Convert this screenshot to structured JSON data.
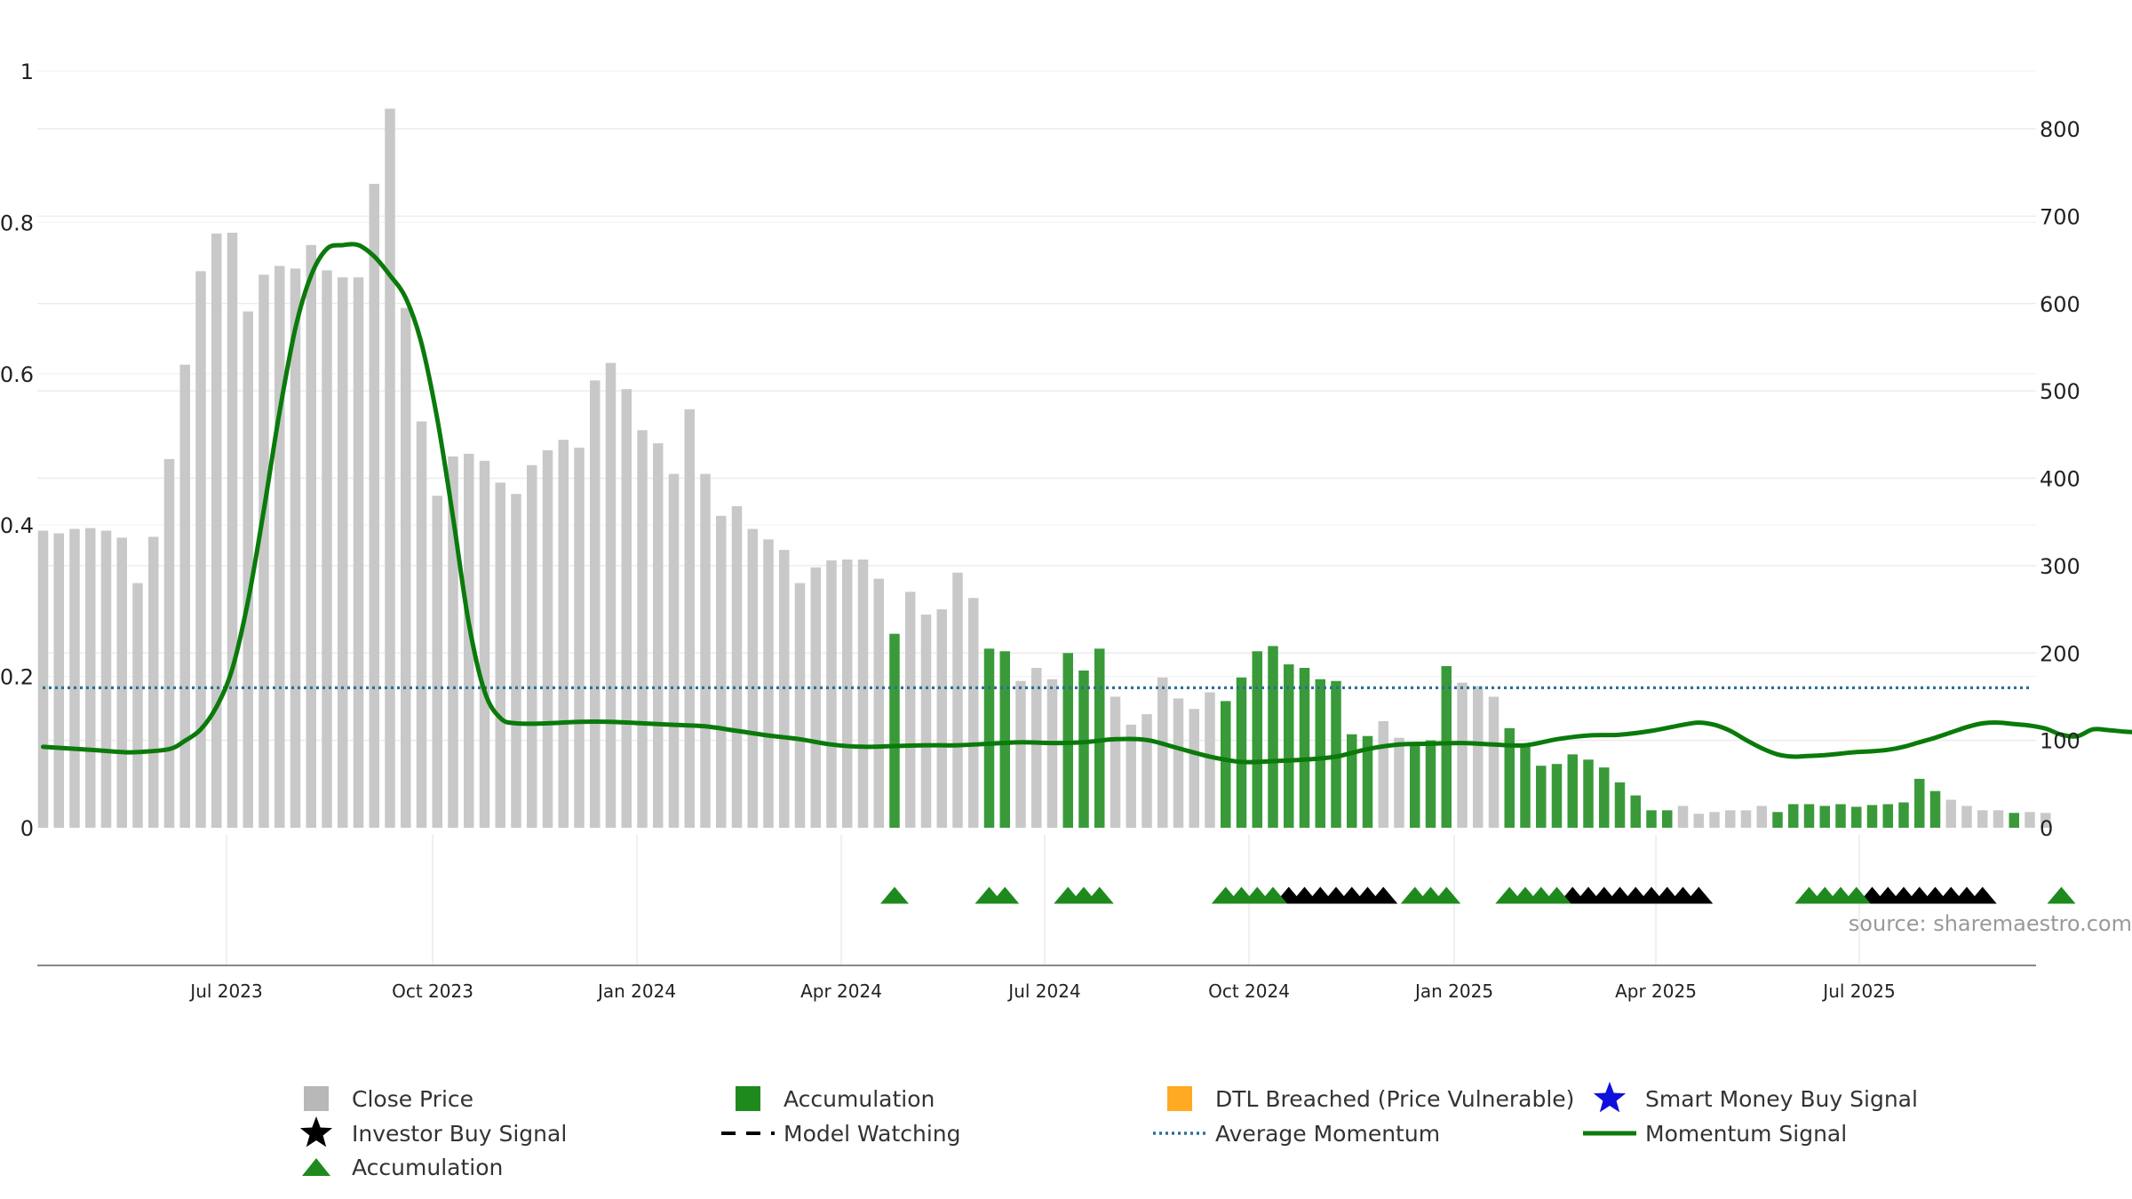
{
  "chart_data": {
    "type": "bar",
    "title": "",
    "xlabel": "",
    "ylabel": "",
    "left_axis": {
      "ylim": [
        0,
        1.2
      ],
      "ticks": [
        "0",
        "0.2",
        "0.4",
        "0.6",
        "0.8",
        "1"
      ]
    },
    "right_axis": {
      "ylim": [
        0,
        860
      ],
      "ticks": [
        "0",
        "100",
        "200",
        "300",
        "400",
        "500",
        "600",
        "700",
        "800"
      ]
    },
    "x_ticks": [
      "Jul 2023",
      "Oct 2023",
      "Jan 2024",
      "Apr 2024",
      "Jul 2024",
      "Oct 2024",
      "Jan 2025",
      "Apr 2025",
      "Jul 2025"
    ],
    "grid": true,
    "source_text": "source: sharemaestro.com",
    "colors": {
      "close_price": "#c8c8c8",
      "accumulation": "#3a9a3a",
      "accumulation_marker": "#1e8a1e",
      "investor_marker": "#000000",
      "average_momentum": "#2a6f97",
      "momentum_signal": "#0a7a0a",
      "dtl_breached": "#ffaa22",
      "smart_money": "#1010dd"
    },
    "bars": [
      {
        "v": 340,
        "acc": false
      },
      {
        "v": 337,
        "acc": false
      },
      {
        "v": 342,
        "acc": false
      },
      {
        "v": 343,
        "acc": false
      },
      {
        "v": 340,
        "acc": false
      },
      {
        "v": 332,
        "acc": false
      },
      {
        "v": 280,
        "acc": false
      },
      {
        "v": 333,
        "acc": false
      },
      {
        "v": 422,
        "acc": false
      },
      {
        "v": 530,
        "acc": false
      },
      {
        "v": 637,
        "acc": false
      },
      {
        "v": 680,
        "acc": false
      },
      {
        "v": 681,
        "acc": false
      },
      {
        "v": 591,
        "acc": false
      },
      {
        "v": 633,
        "acc": false
      },
      {
        "v": 643,
        "acc": false
      },
      {
        "v": 640,
        "acc": false
      },
      {
        "v": 667,
        "acc": false
      },
      {
        "v": 638,
        "acc": false
      },
      {
        "v": 630,
        "acc": false
      },
      {
        "v": 630,
        "acc": false
      },
      {
        "v": 737,
        "acc": false
      },
      {
        "v": 823,
        "acc": false
      },
      {
        "v": 595,
        "acc": false
      },
      {
        "v": 465,
        "acc": false
      },
      {
        "v": 380,
        "acc": false
      },
      {
        "v": 425,
        "acc": false
      },
      {
        "v": 428,
        "acc": false
      },
      {
        "v": 420,
        "acc": false
      },
      {
        "v": 395,
        "acc": false
      },
      {
        "v": 382,
        "acc": false
      },
      {
        "v": 415,
        "acc": false
      },
      {
        "v": 432,
        "acc": false
      },
      {
        "v": 444,
        "acc": false
      },
      {
        "v": 435,
        "acc": false
      },
      {
        "v": 512,
        "acc": false
      },
      {
        "v": 532,
        "acc": false
      },
      {
        "v": 502,
        "acc": false
      },
      {
        "v": 455,
        "acc": false
      },
      {
        "v": 440,
        "acc": false
      },
      {
        "v": 405,
        "acc": false
      },
      {
        "v": 479,
        "acc": false
      },
      {
        "v": 405,
        "acc": false
      },
      {
        "v": 357,
        "acc": false
      },
      {
        "v": 368,
        "acc": false
      },
      {
        "v": 342,
        "acc": false
      },
      {
        "v": 330,
        "acc": false
      },
      {
        "v": 318,
        "acc": false
      },
      {
        "v": 280,
        "acc": false
      },
      {
        "v": 298,
        "acc": false
      },
      {
        "v": 306,
        "acc": false
      },
      {
        "v": 307,
        "acc": false
      },
      {
        "v": 307,
        "acc": false
      },
      {
        "v": 285,
        "acc": false
      },
      {
        "v": 222,
        "acc": true
      },
      {
        "v": 270,
        "acc": false
      },
      {
        "v": 244,
        "acc": false
      },
      {
        "v": 250,
        "acc": false
      },
      {
        "v": 292,
        "acc": false
      },
      {
        "v": 263,
        "acc": false
      },
      {
        "v": 205,
        "acc": true
      },
      {
        "v": 202,
        "acc": true
      },
      {
        "v": 168,
        "acc": false
      },
      {
        "v": 183,
        "acc": false
      },
      {
        "v": 170,
        "acc": false
      },
      {
        "v": 200,
        "acc": true
      },
      {
        "v": 180,
        "acc": true
      },
      {
        "v": 205,
        "acc": true
      },
      {
        "v": 150,
        "acc": false
      },
      {
        "v": 118,
        "acc": false
      },
      {
        "v": 130,
        "acc": false
      },
      {
        "v": 172,
        "acc": false
      },
      {
        "v": 148,
        "acc": false
      },
      {
        "v": 136,
        "acc": false
      },
      {
        "v": 155,
        "acc": false
      },
      {
        "v": 145,
        "acc": true
      },
      {
        "v": 172,
        "acc": true
      },
      {
        "v": 202,
        "acc": true
      },
      {
        "v": 208,
        "acc": true
      },
      {
        "v": 187,
        "acc": true
      },
      {
        "v": 183,
        "acc": true
      },
      {
        "v": 170,
        "acc": true
      },
      {
        "v": 168,
        "acc": true
      },
      {
        "v": 107,
        "acc": true
      },
      {
        "v": 105,
        "acc": true
      },
      {
        "v": 122,
        "acc": false
      },
      {
        "v": 103,
        "acc": false
      },
      {
        "v": 96,
        "acc": true
      },
      {
        "v": 100,
        "acc": true
      },
      {
        "v": 185,
        "acc": true
      },
      {
        "v": 166,
        "acc": false
      },
      {
        "v": 162,
        "acc": false
      },
      {
        "v": 150,
        "acc": false
      },
      {
        "v": 114,
        "acc": true
      },
      {
        "v": 93,
        "acc": true
      },
      {
        "v": 71,
        "acc": true
      },
      {
        "v": 73,
        "acc": true
      },
      {
        "v": 84,
        "acc": true
      },
      {
        "v": 78,
        "acc": true
      },
      {
        "v": 69,
        "acc": true
      },
      {
        "v": 52,
        "acc": true
      },
      {
        "v": 37,
        "acc": true
      },
      {
        "v": 20,
        "acc": true
      },
      {
        "v": 20,
        "acc": true
      },
      {
        "v": 25,
        "acc": false
      },
      {
        "v": 16,
        "acc": false
      },
      {
        "v": 18,
        "acc": false
      },
      {
        "v": 20,
        "acc": false
      },
      {
        "v": 20,
        "acc": false
      },
      {
        "v": 25,
        "acc": false
      },
      {
        "v": 18,
        "acc": true
      },
      {
        "v": 27,
        "acc": true
      },
      {
        "v": 27,
        "acc": true
      },
      {
        "v": 25,
        "acc": true
      },
      {
        "v": 27,
        "acc": true
      },
      {
        "v": 24,
        "acc": true
      },
      {
        "v": 26,
        "acc": true
      },
      {
        "v": 27,
        "acc": true
      },
      {
        "v": 29,
        "acc": true
      },
      {
        "v": 56,
        "acc": true
      },
      {
        "v": 42,
        "acc": true
      },
      {
        "v": 32,
        "acc": false
      },
      {
        "v": 25,
        "acc": false
      },
      {
        "v": 20,
        "acc": false
      },
      {
        "v": 20,
        "acc": false
      },
      {
        "v": 17,
        "acc": true
      },
      {
        "v": 18,
        "acc": false
      },
      {
        "v": 17,
        "acc": false
      }
    ],
    "average_momentum": 0.185,
    "momentum_signal": [
      [
        0,
        0.107
      ],
      [
        3,
        0.103
      ],
      [
        5,
        0.1
      ],
      [
        6,
        0.1
      ],
      [
        8,
        0.104
      ],
      [
        9,
        0.115
      ],
      [
        10,
        0.13
      ],
      [
        11,
        0.16
      ],
      [
        12,
        0.21
      ],
      [
        13,
        0.3
      ],
      [
        14,
        0.42
      ],
      [
        15,
        0.55
      ],
      [
        16,
        0.66
      ],
      [
        17,
        0.73
      ],
      [
        18,
        0.765
      ],
      [
        19,
        0.77
      ],
      [
        20,
        0.77
      ],
      [
        21,
        0.755
      ],
      [
        22,
        0.73
      ],
      [
        23,
        0.7
      ],
      [
        24,
        0.64
      ],
      [
        25,
        0.54
      ],
      [
        26,
        0.41
      ],
      [
        27,
        0.27
      ],
      [
        28,
        0.18
      ],
      [
        29,
        0.145
      ],
      [
        30,
        0.138
      ],
      [
        32,
        0.138
      ],
      [
        34,
        0.14
      ],
      [
        36,
        0.14
      ],
      [
        38,
        0.138
      ],
      [
        40,
        0.136
      ],
      [
        42,
        0.134
      ],
      [
        44,
        0.128
      ],
      [
        46,
        0.122
      ],
      [
        48,
        0.117
      ],
      [
        50,
        0.11
      ],
      [
        52,
        0.107
      ],
      [
        54,
        0.108
      ],
      [
        56,
        0.109
      ],
      [
        58,
        0.109
      ],
      [
        60,
        0.111
      ],
      [
        62,
        0.113
      ],
      [
        64,
        0.112
      ],
      [
        66,
        0.113
      ],
      [
        68,
        0.117
      ],
      [
        70,
        0.116
      ],
      [
        72,
        0.105
      ],
      [
        74,
        0.094
      ],
      [
        76,
        0.087
      ],
      [
        78,
        0.088
      ],
      [
        80,
        0.09
      ],
      [
        82,
        0.094
      ],
      [
        84,
        0.104
      ],
      [
        86,
        0.11
      ],
      [
        88,
        0.111
      ],
      [
        90,
        0.112
      ],
      [
        92,
        0.11
      ],
      [
        94,
        0.109
      ],
      [
        96,
        0.117
      ],
      [
        98,
        0.122
      ],
      [
        100,
        0.123
      ],
      [
        102,
        0.128
      ],
      [
        104,
        0.136
      ],
      [
        105,
        0.139
      ],
      [
        106,
        0.136
      ],
      [
        107,
        0.128
      ],
      [
        108,
        0.116
      ],
      [
        109,
        0.105
      ],
      [
        110,
        0.097
      ],
      [
        111,
        0.094
      ],
      [
        112,
        0.095
      ],
      [
        113,
        0.096
      ],
      [
        114,
        0.098
      ],
      [
        115,
        0.1
      ],
      [
        116,
        0.101
      ],
      [
        117,
        0.103
      ],
      [
        118,
        0.107
      ],
      [
        119,
        0.113
      ],
      [
        120,
        0.119
      ],
      [
        121,
        0.126
      ],
      [
        122,
        0.133
      ],
      [
        123,
        0.138
      ],
      [
        124,
        0.139
      ],
      [
        125,
        0.137
      ],
      [
        126,
        0.135
      ],
      [
        127,
        0.131
      ],
      [
        128,
        0.123
      ],
      [
        129,
        0.121
      ],
      [
        130,
        0.13
      ],
      [
        131,
        0.129
      ],
      [
        132,
        0.127
      ],
      [
        133,
        0.126
      ]
    ],
    "accumulation_markers": [
      54,
      60,
      61,
      65,
      66,
      67,
      75,
      76,
      77,
      78,
      87,
      88,
      89,
      93,
      94,
      95,
      96,
      112,
      113,
      114,
      115,
      128
    ],
    "investor_markers": [
      79,
      80,
      81,
      82,
      83,
      84,
      85,
      97,
      98,
      99,
      100,
      101,
      102,
      103,
      104,
      105,
      116,
      117,
      118,
      119,
      120,
      121,
      122,
      123
    ],
    "legend": [
      {
        "label": "Close Price",
        "symbol": "square",
        "color": "#b8b8b8"
      },
      {
        "label": "Accumulation",
        "symbol": "square",
        "color": "#1e8a1e"
      },
      {
        "label": "DTL Breached (Price Vulnerable)",
        "symbol": "square",
        "color": "#ffaa22"
      },
      {
        "label": "Smart Money Buy Signal",
        "symbol": "star",
        "color": "#1010dd"
      },
      {
        "label": "Investor Buy Signal",
        "symbol": "star",
        "color": "#000000"
      },
      {
        "label": "Model Watching",
        "symbol": "dash",
        "color": "#000000"
      },
      {
        "label": "Average Momentum",
        "symbol": "dot",
        "color": "#2a6f97"
      },
      {
        "label": "Momentum Signal",
        "symbol": "line",
        "color": "#0a7a0a"
      },
      {
        "label": "Accumulation",
        "symbol": "triangle",
        "color": "#1e8a1e"
      }
    ]
  }
}
